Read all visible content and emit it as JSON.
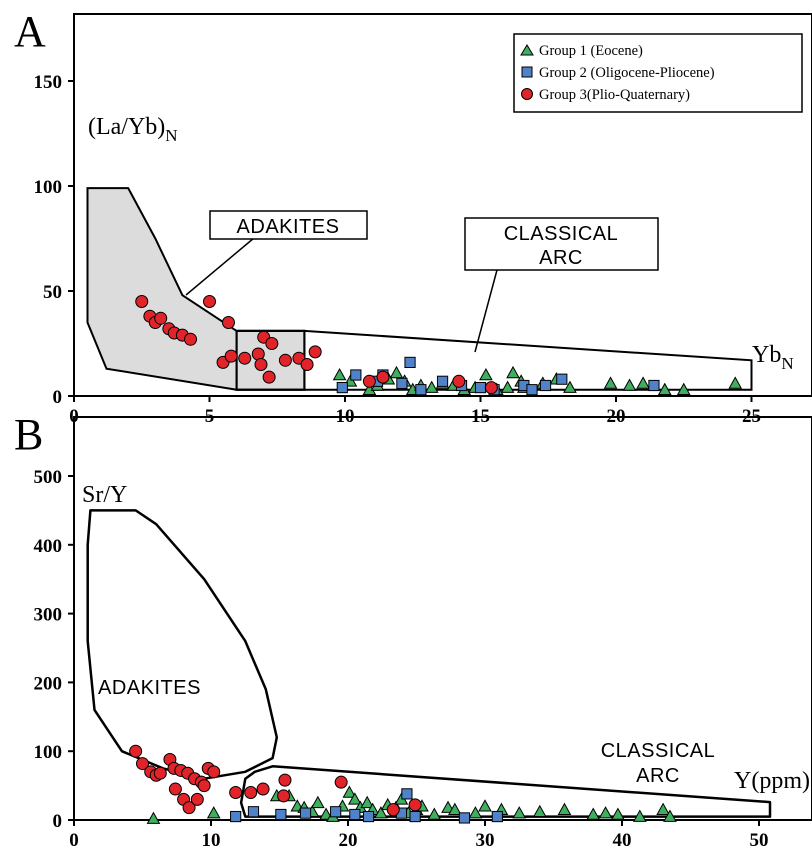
{
  "colors": {
    "group1": "#3fae5f",
    "group2": "#4f82c9",
    "group3": "#e0242a",
    "adakite_fill": "#dcdcdc"
  },
  "chart_data": [
    {
      "type": "scatter",
      "panel_label": "A",
      "ylabel": "(La/Yb)",
      "ylabel_sub": "N",
      "xlabel": "Yb",
      "xlabel_sub": "N",
      "xlim": [
        0,
        27.5
      ],
      "ylim": [
        0,
        165
      ],
      "xticks": [
        "0",
        "5",
        "10",
        "15",
        "20",
        "25"
      ],
      "yticks": [
        "0",
        "50",
        "100",
        "150"
      ],
      "legend_position": "top-right",
      "fields": [
        {
          "label": "ADAKITES"
        },
        {
          "label_lines": [
            "CLASSICAL",
            "ARC"
          ]
        }
      ],
      "series": [
        {
          "name": "Group 1 (Eocene)",
          "marker": "triangle",
          "points": [
            [
              9.8,
              10
            ],
            [
              10.2,
              7
            ],
            [
              10.9,
              3
            ],
            [
              11.2,
              5
            ],
            [
              11.6,
              8
            ],
            [
              11.9,
              11
            ],
            [
              12.2,
              7
            ],
            [
              12.5,
              3
            ],
            [
              12.8,
              5
            ],
            [
              13.2,
              4
            ],
            [
              13.6,
              6
            ],
            [
              14.0,
              5
            ],
            [
              14.4,
              3
            ],
            [
              14.8,
              4
            ],
            [
              15.2,
              10
            ],
            [
              15.6,
              3
            ],
            [
              16.0,
              4
            ],
            [
              16.2,
              11
            ],
            [
              16.5,
              7
            ],
            [
              16.6,
              4
            ],
            [
              17.3,
              6
            ],
            [
              17.8,
              8
            ],
            [
              18.3,
              4
            ],
            [
              19.8,
              6
            ],
            [
              20.5,
              5
            ],
            [
              21.0,
              6
            ],
            [
              21.8,
              3
            ],
            [
              22.5,
              3
            ],
            [
              24.4,
              6
            ]
          ]
        },
        {
          "name": "Group 2 (Oligocene-Pliocene)",
          "marker": "square",
          "points": [
            [
              9.9,
              4
            ],
            [
              10.4,
              10
            ],
            [
              11.2,
              7
            ],
            [
              11.4,
              10
            ],
            [
              12.1,
              6
            ],
            [
              12.4,
              16
            ],
            [
              12.8,
              3
            ],
            [
              13.6,
              7
            ],
            [
              14.3,
              5
            ],
            [
              15.0,
              4
            ],
            [
              15.5,
              3
            ],
            [
              16.6,
              5
            ],
            [
              16.9,
              3
            ],
            [
              17.4,
              5
            ],
            [
              18.0,
              8
            ],
            [
              21.4,
              5
            ]
          ]
        },
        {
          "name": "Group 3(Plio-Quaternary)",
          "marker": "circle",
          "points": [
            [
              2.5,
              45
            ],
            [
              2.8,
              38
            ],
            [
              3.0,
              35
            ],
            [
              3.2,
              37
            ],
            [
              3.5,
              32
            ],
            [
              3.7,
              30
            ],
            [
              4.0,
              29
            ],
            [
              4.3,
              27
            ],
            [
              5.0,
              45
            ],
            [
              5.7,
              35
            ],
            [
              5.5,
              16
            ],
            [
              5.8,
              19
            ],
            [
              6.3,
              18
            ],
            [
              6.8,
              20
            ],
            [
              7.0,
              28
            ],
            [
              6.9,
              15
            ],
            [
              7.3,
              25
            ],
            [
              7.8,
              17
            ],
            [
              7.2,
              9
            ],
            [
              8.3,
              18
            ],
            [
              8.6,
              15
            ],
            [
              8.9,
              21
            ],
            [
              10.9,
              7
            ],
            [
              11.4,
              9
            ],
            [
              14.2,
              7
            ],
            [
              15.4,
              4
            ]
          ]
        }
      ]
    },
    {
      "type": "scatter",
      "panel_label": "B",
      "ylabel": "Sr/Y",
      "xlabel": "Y(ppm)",
      "xlim": [
        0,
        55
      ],
      "ylim": [
        0,
        535
      ],
      "xticks": [
        "0",
        "10",
        "20",
        "30",
        "40",
        "50"
      ],
      "yticks": [
        "0",
        "100",
        "200",
        "300",
        "400",
        "500"
      ],
      "fields": [
        {
          "label": "ADAKITES"
        },
        {
          "label_lines": [
            "CLASSICAL",
            "ARC"
          ]
        }
      ],
      "series": [
        {
          "name": "Group 1 (Eocene)",
          "marker": "triangle",
          "points": [
            [
              5.8,
              2
            ],
            [
              10.2,
              10
            ],
            [
              14.8,
              35
            ],
            [
              15.7,
              35
            ],
            [
              16.3,
              20
            ],
            [
              16.8,
              18
            ],
            [
              17.4,
              12
            ],
            [
              17.8,
              25
            ],
            [
              18.4,
              8
            ],
            [
              18.9,
              5
            ],
            [
              19.6,
              20
            ],
            [
              20.1,
              40
            ],
            [
              20.5,
              30
            ],
            [
              20.9,
              18
            ],
            [
              21.4,
              25
            ],
            [
              21.8,
              15
            ],
            [
              22.4,
              10
            ],
            [
              22.9,
              22
            ],
            [
              23.5,
              18
            ],
            [
              23.9,
              30
            ],
            [
              24.4,
              10
            ],
            [
              25.0,
              15
            ],
            [
              25.4,
              20
            ],
            [
              26.3,
              8
            ],
            [
              27.3,
              18
            ],
            [
              27.8,
              15
            ],
            [
              29.3,
              10
            ],
            [
              30.0,
              20
            ],
            [
              31.2,
              15
            ],
            [
              32.5,
              10
            ],
            [
              34.0,
              12
            ],
            [
              35.8,
              15
            ],
            [
              37.9,
              8
            ],
            [
              38.8,
              10
            ],
            [
              39.7,
              8
            ],
            [
              41.3,
              5
            ],
            [
              43.0,
              15
            ],
            [
              43.5,
              5
            ]
          ]
        },
        {
          "name": "Group 2 (Oligocene-Pliocene)",
          "marker": "square",
          "points": [
            [
              11.8,
              5
            ],
            [
              13.1,
              12
            ],
            [
              15.1,
              8
            ],
            [
              16.9,
              10
            ],
            [
              19.1,
              12
            ],
            [
              20.5,
              8
            ],
            [
              21.5,
              5
            ],
            [
              23.9,
              10
            ],
            [
              24.3,
              38
            ],
            [
              24.9,
              5
            ],
            [
              28.5,
              3
            ],
            [
              30.9,
              5
            ]
          ]
        },
        {
          "name": "Group 3(Plio-Quaternary)",
          "marker": "circle",
          "points": [
            [
              4.5,
              100
            ],
            [
              5.0,
              82
            ],
            [
              5.6,
              70
            ],
            [
              6.0,
              65
            ],
            [
              6.3,
              68
            ],
            [
              7.0,
              88
            ],
            [
              7.3,
              75
            ],
            [
              7.8,
              72
            ],
            [
              8.3,
              68
            ],
            [
              8.8,
              60
            ],
            [
              9.3,
              55
            ],
            [
              9.8,
              75
            ],
            [
              10.2,
              70
            ],
            [
              9.5,
              50
            ],
            [
              8.0,
              30
            ],
            [
              8.4,
              18
            ],
            [
              9.0,
              30
            ],
            [
              7.4,
              45
            ],
            [
              11.8,
              40
            ],
            [
              12.9,
              40
            ],
            [
              13.8,
              45
            ],
            [
              15.4,
              58
            ],
            [
              15.3,
              35
            ],
            [
              19.5,
              55
            ],
            [
              23.3,
              15
            ],
            [
              24.9,
              22
            ]
          ]
        }
      ]
    }
  ]
}
